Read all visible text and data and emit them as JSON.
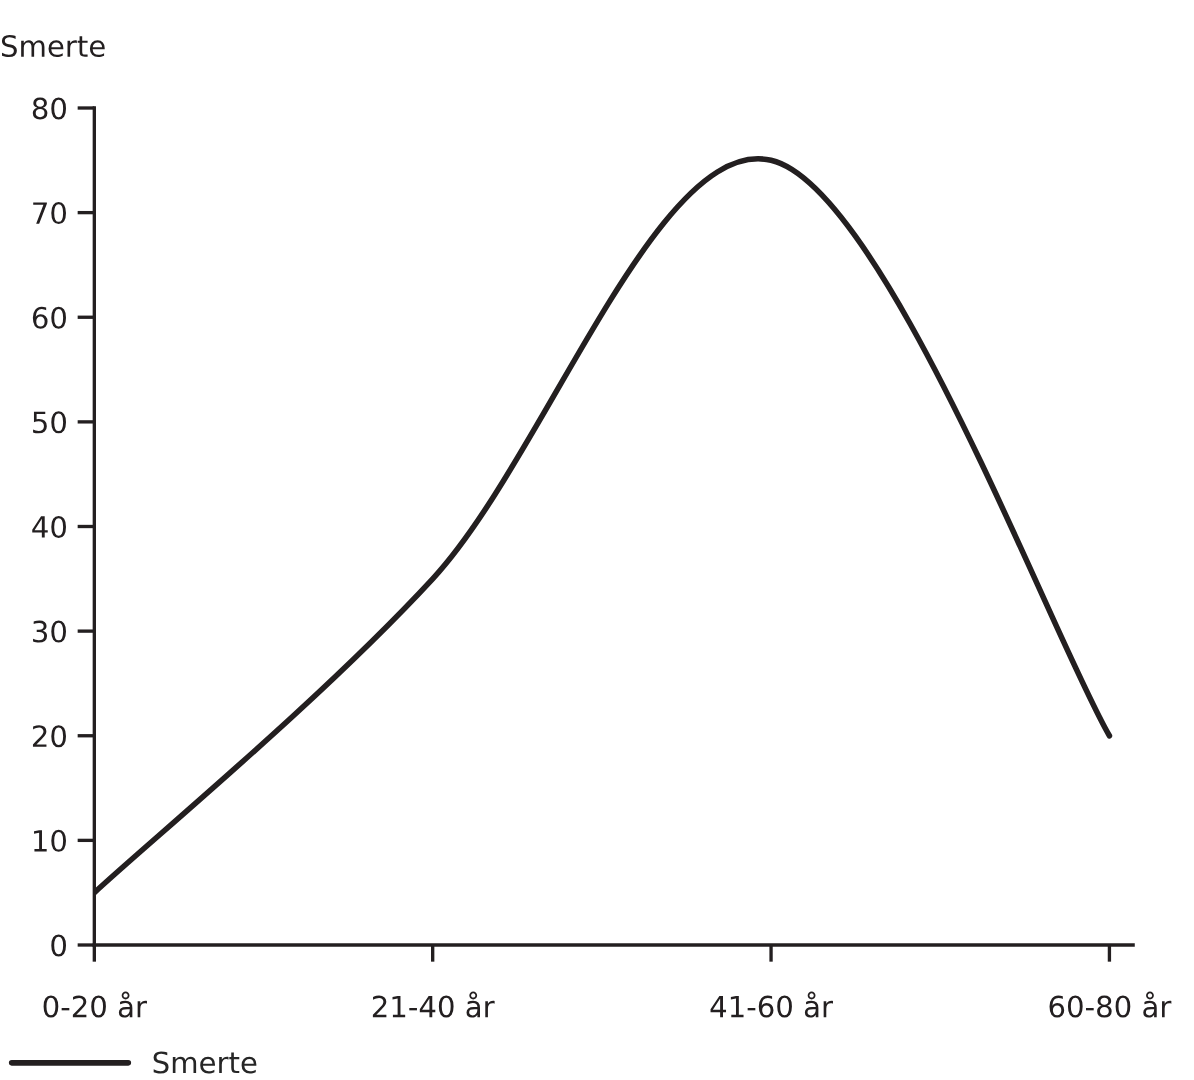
{
  "chart_data": {
    "type": "line",
    "ylabel": "Smerte",
    "categories": [
      "0-20 år",
      "21-40 år",
      "41-60 år",
      "60-80 år"
    ],
    "series": [
      {
        "name": "Smerte",
        "color": "#231f20",
        "values": [
          5,
          35,
          75,
          20
        ]
      }
    ],
    "ylim": [
      0,
      80
    ],
    "yticks": [
      0,
      10,
      20,
      30,
      40,
      50,
      60,
      70,
      80
    ],
    "grid": false,
    "legend": "bottom left",
    "marker": "none",
    "line_style": "solid"
  }
}
